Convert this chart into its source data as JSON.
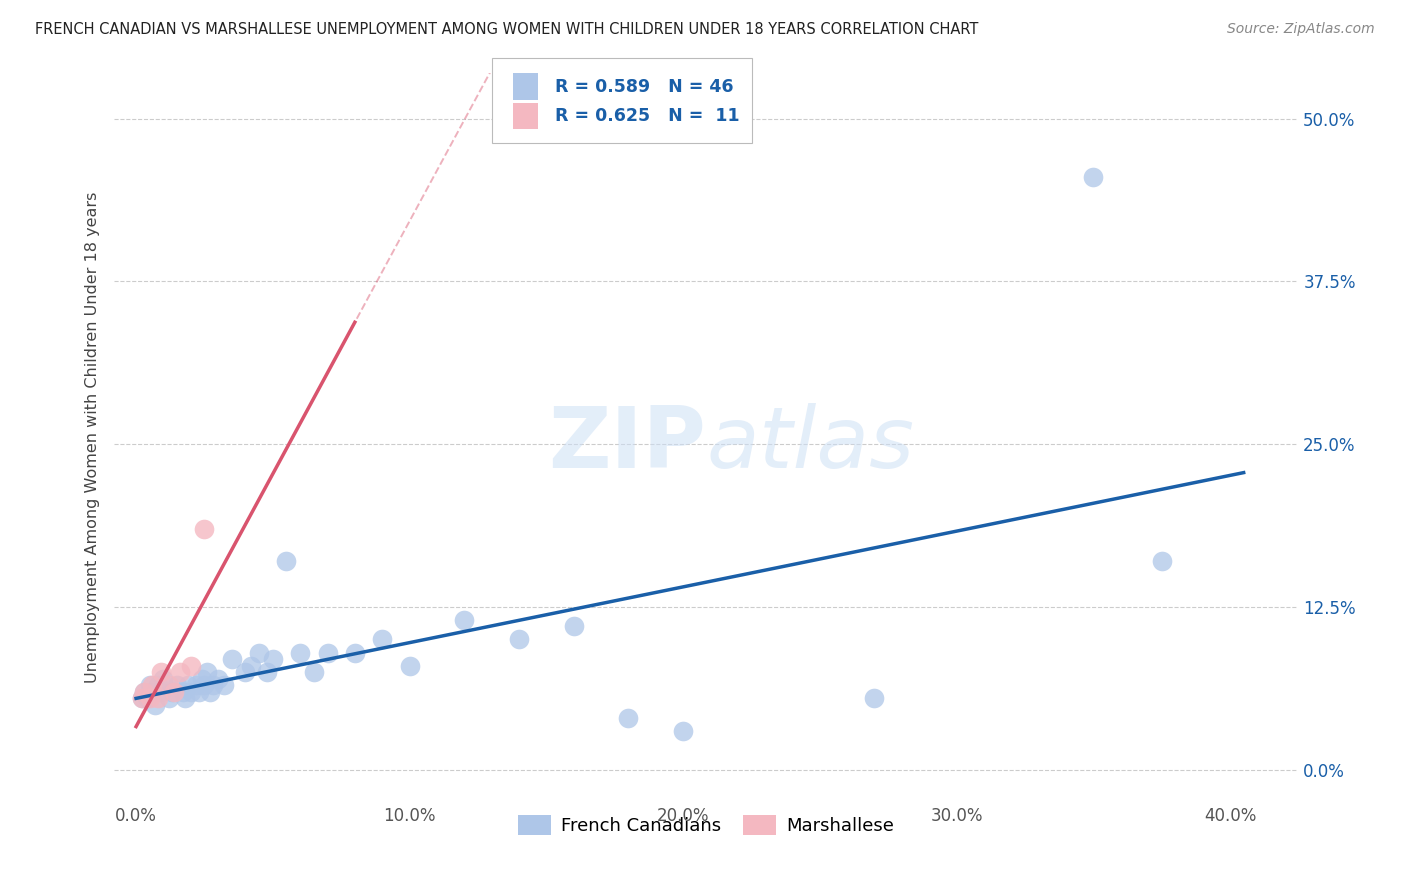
{
  "title": "FRENCH CANADIAN VS MARSHALLESE UNEMPLOYMENT AMONG WOMEN WITH CHILDREN UNDER 18 YEARS CORRELATION CHART",
  "source": "Source: ZipAtlas.com",
  "xlabel_ticks": [
    "0.0%",
    "10.0%",
    "20.0%",
    "30.0%",
    "40.0%"
  ],
  "ylabel_ticks": [
    "0.0%",
    "12.5%",
    "25.0%",
    "37.5%",
    "50.0%"
  ],
  "xlabel_vals": [
    0.0,
    0.1,
    0.2,
    0.3,
    0.4
  ],
  "ylabel_vals": [
    0.0,
    0.125,
    0.25,
    0.375,
    0.5
  ],
  "ylabel_label": "Unemployment Among Women with Children Under 18 years",
  "legend_labels": [
    "French Canadians",
    "Marshallese"
  ],
  "r_french": 0.589,
  "n_french": 46,
  "r_marsh": 0.625,
  "n_marsh": 11,
  "french_color": "#aec6e8",
  "marsh_color": "#f4b8c1",
  "french_line_color": "#1a5fa8",
  "marsh_line_color": "#d9546e",
  "watermark_zip": "ZIP",
  "watermark_atlas": "atlas",
  "french_x": [
    0.002,
    0.003,
    0.004,
    0.005,
    0.006,
    0.007,
    0.008,
    0.009,
    0.01,
    0.012,
    0.013,
    0.015,
    0.017,
    0.018,
    0.019,
    0.02,
    0.022,
    0.023,
    0.024,
    0.025,
    0.026,
    0.027,
    0.028,
    0.03,
    0.032,
    0.035,
    0.04,
    0.042,
    0.045,
    0.048,
    0.05,
    0.055,
    0.06,
    0.065,
    0.07,
    0.08,
    0.09,
    0.1,
    0.12,
    0.14,
    0.16,
    0.18,
    0.2,
    0.27,
    0.35,
    0.375
  ],
  "french_y": [
    0.055,
    0.06,
    0.055,
    0.065,
    0.06,
    0.05,
    0.065,
    0.06,
    0.07,
    0.055,
    0.06,
    0.065,
    0.06,
    0.055,
    0.065,
    0.06,
    0.065,
    0.06,
    0.07,
    0.065,
    0.075,
    0.06,
    0.065,
    0.07,
    0.065,
    0.085,
    0.075,
    0.08,
    0.09,
    0.075,
    0.085,
    0.16,
    0.09,
    0.075,
    0.09,
    0.09,
    0.1,
    0.08,
    0.115,
    0.1,
    0.11,
    0.04,
    0.03,
    0.055,
    0.455,
    0.16
  ],
  "marsh_x": [
    0.002,
    0.003,
    0.005,
    0.006,
    0.008,
    0.009,
    0.012,
    0.014,
    0.016,
    0.02,
    0.025
  ],
  "marsh_y": [
    0.055,
    0.06,
    0.055,
    0.065,
    0.055,
    0.075,
    0.065,
    0.06,
    0.075,
    0.08,
    0.185
  ],
  "xlim": [
    -0.008,
    0.425
  ],
  "ylim": [
    -0.025,
    0.535
  ]
}
